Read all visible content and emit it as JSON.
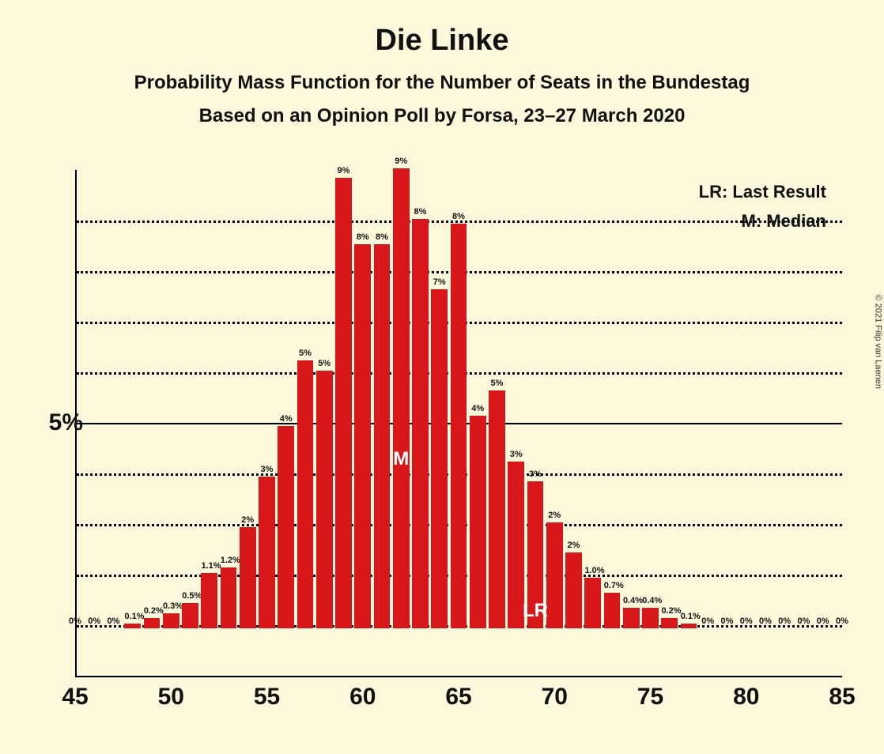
{
  "titles": {
    "main": "Die Linke",
    "sub1": "Probability Mass Function for the Number of Seats in the Bundestag",
    "sub2": "Based on an Opinion Poll by Forsa, 23–27 March 2020"
  },
  "legend": {
    "lr": "LR: Last Result",
    "m": "M: Median"
  },
  "copyright": "© 2021 Filip van Laenen",
  "chart": {
    "type": "bar",
    "bar_color": "#d8171b",
    "background_color": "#fcf8db",
    "grid_color": "#000000",
    "xlim": [
      45,
      85
    ],
    "ylim": [
      0,
      10
    ],
    "y_tick_major": 5,
    "y_tick_minor_step": 1,
    "x_tick_step": 5,
    "y_axis_label": "5%",
    "bars": [
      {
        "x": 45,
        "y": 0,
        "label": "0%"
      },
      {
        "x": 46,
        "y": 0,
        "label": "0%"
      },
      {
        "x": 47,
        "y": 0,
        "label": "0%"
      },
      {
        "x": 48,
        "y": 0.1,
        "label": "0.1%"
      },
      {
        "x": 49,
        "y": 0.2,
        "label": "0.2%"
      },
      {
        "x": 50,
        "y": 0.3,
        "label": "0.3%"
      },
      {
        "x": 51,
        "y": 0.5,
        "label": "0.5%"
      },
      {
        "x": 52,
        "y": 1.1,
        "label": "1.1%"
      },
      {
        "x": 53,
        "y": 1.2,
        "label": "1.2%"
      },
      {
        "x": 54,
        "y": 2.0,
        "label": "2%"
      },
      {
        "x": 55,
        "y": 3.0,
        "label": "3%"
      },
      {
        "x": 56,
        "y": 4.0,
        "label": "4%"
      },
      {
        "x": 57,
        "y": 5.3,
        "label": "5%"
      },
      {
        "x": 58,
        "y": 5.1,
        "label": "5%"
      },
      {
        "x": 59,
        "y": 8.9,
        "label": "9%"
      },
      {
        "x": 60,
        "y": 7.6,
        "label": "8%"
      },
      {
        "x": 61,
        "y": 7.6,
        "label": "8%"
      },
      {
        "x": 62,
        "y": 9.1,
        "label": "9%"
      },
      {
        "x": 63,
        "y": 8.1,
        "label": "8%"
      },
      {
        "x": 64,
        "y": 6.7,
        "label": "7%"
      },
      {
        "x": 65,
        "y": 8.0,
        "label": "8%"
      },
      {
        "x": 66,
        "y": 4.2,
        "label": "4%"
      },
      {
        "x": 67,
        "y": 4.7,
        "label": "5%"
      },
      {
        "x": 68,
        "y": 3.3,
        "label": "3%"
      },
      {
        "x": 69,
        "y": 2.9,
        "label": "3%"
      },
      {
        "x": 70,
        "y": 2.1,
        "label": "2%"
      },
      {
        "x": 71,
        "y": 1.5,
        "label": "2%"
      },
      {
        "x": 72,
        "y": 1.0,
        "label": "1.0%"
      },
      {
        "x": 73,
        "y": 0.7,
        "label": "0.7%"
      },
      {
        "x": 74,
        "y": 0.4,
        "label": "0.4%"
      },
      {
        "x": 75,
        "y": 0.4,
        "label": "0.4%"
      },
      {
        "x": 76,
        "y": 0.2,
        "label": "0.2%"
      },
      {
        "x": 77,
        "y": 0.1,
        "label": "0.1%"
      },
      {
        "x": 78,
        "y": 0,
        "label": "0%"
      },
      {
        "x": 79,
        "y": 0,
        "label": "0%"
      },
      {
        "x": 80,
        "y": 0,
        "label": "0%"
      },
      {
        "x": 81,
        "y": 0,
        "label": "0%"
      },
      {
        "x": 82,
        "y": 0,
        "label": "0%"
      },
      {
        "x": 83,
        "y": 0,
        "label": "0%"
      },
      {
        "x": 84,
        "y": 0,
        "label": "0%"
      },
      {
        "x": 85,
        "y": 0,
        "label": "0%"
      }
    ],
    "markers": {
      "median": {
        "x": 62,
        "label": "M"
      },
      "last_result": {
        "x": 69,
        "label": "LR"
      }
    },
    "x_ticks": [
      45,
      50,
      55,
      60,
      65,
      70,
      75,
      80,
      85
    ]
  }
}
